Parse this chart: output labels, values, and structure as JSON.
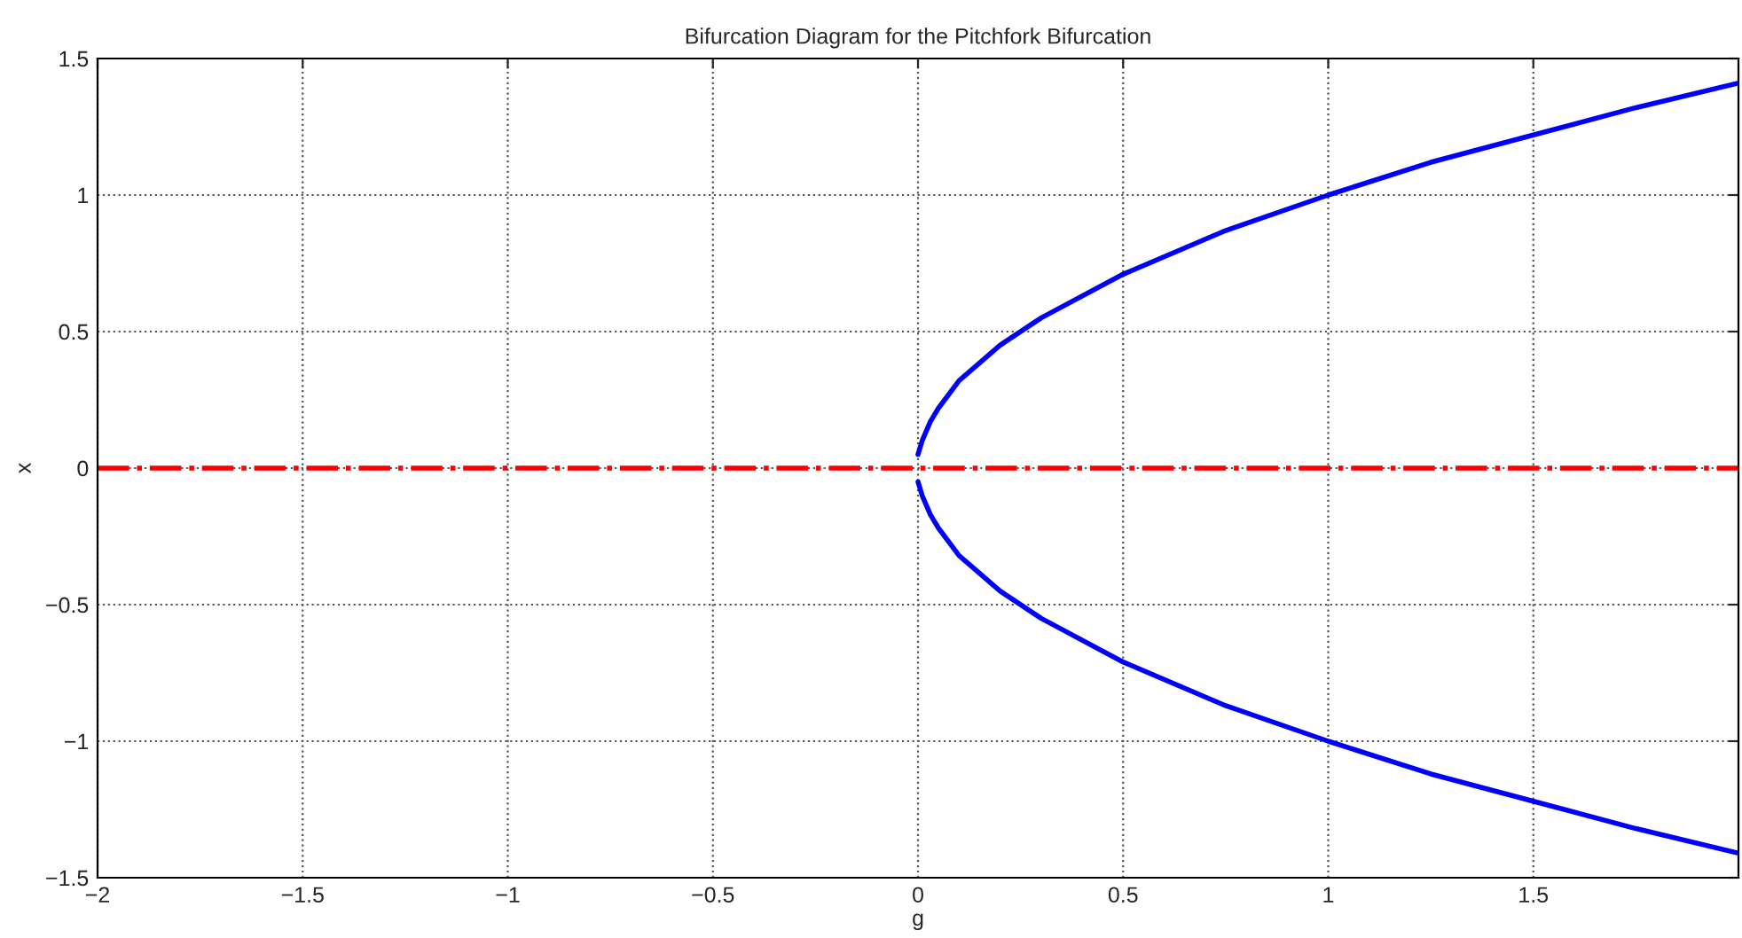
{
  "chart_data": {
    "type": "line",
    "title": "Bifurcation Diagram for the Pitchfork Bifurcation",
    "xlabel": "g",
    "ylabel": "x",
    "series": [
      {
        "color": "#0000ff",
        "line_style": "solid",
        "x": [
          0,
          0.01,
          0.03,
          0.05,
          0.1,
          0.2,
          0.3,
          0.5,
          0.75,
          1,
          1.25,
          1.5,
          1.75,
          2
        ],
        "values": [
          0.05,
          0.1,
          0.17,
          0.22,
          0.32,
          0.45,
          0.55,
          0.71,
          0.87,
          1.0,
          1.12,
          1.22,
          1.32,
          1.41
        ]
      },
      {
        "color": "#0000ff",
        "line_style": "solid",
        "x": [
          0,
          0.01,
          0.03,
          0.05,
          0.1,
          0.2,
          0.3,
          0.5,
          0.75,
          1,
          1.25,
          1.5,
          1.75,
          2
        ],
        "values": [
          -0.05,
          -0.1,
          -0.17,
          -0.22,
          -0.32,
          -0.45,
          -0.55,
          -0.71,
          -0.87,
          -1.0,
          -1.12,
          -1.22,
          -1.32,
          -1.41
        ]
      },
      {
        "color": "#ff0000",
        "line_style": "dashdot",
        "x": [
          -2,
          2
        ],
        "values": [
          0,
          0
        ]
      }
    ],
    "xlim": [
      -2,
      2
    ],
    "ylim": [
      -1.5,
      1.5
    ],
    "xticks": [
      {
        "value": -2,
        "label": "−2"
      },
      {
        "value": -1.5,
        "label": "−1.5"
      },
      {
        "value": -1,
        "label": "−1"
      },
      {
        "value": -0.5,
        "label": "−0.5"
      },
      0,
      0.5,
      1,
      1.5
    ],
    "yticks": [
      {
        "value": -1.5,
        "label": "−1.5"
      },
      {
        "value": -1,
        "label": "−1"
      },
      {
        "value": -0.5,
        "label": "−0.5"
      },
      0,
      0.5,
      1,
      1.5
    ],
    "grid": true,
    "marker": "none"
  }
}
